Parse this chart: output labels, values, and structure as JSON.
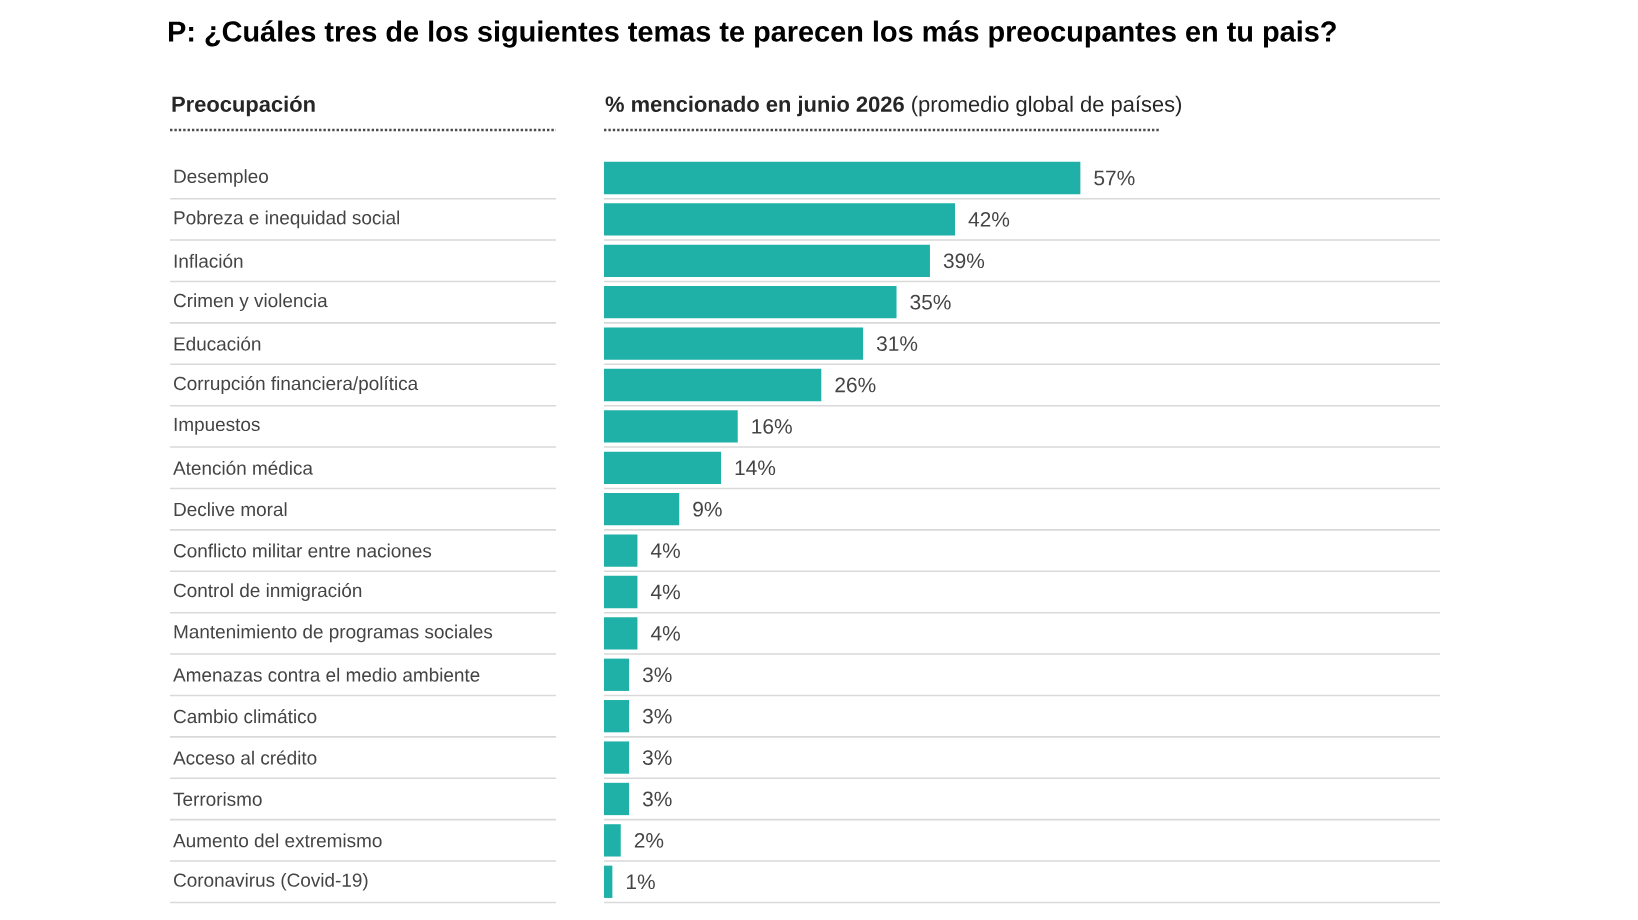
{
  "chart_data": {
    "type": "bar",
    "orientation": "horizontal",
    "title": "P: ¿Cuáles tres de los siguientes temas te parecen los más preocupantes en tu pais?",
    "ylabel": "Preocupación",
    "xlabel": "**% mencionado en junio 2026** (promedio global de países)",
    "categories": [
      "Desempleo",
      "Pobreza e inequidad social",
      "Inflación",
      "Crimen y violencia",
      "Educación",
      "Corrupción financiera/política",
      "Impuestos",
      "Atención médica",
      "Declive moral",
      "Conflicto militar entre naciones",
      "Control de inmigración",
      "Mantenimiento de programas sociales",
      "Amenazas contra el medio ambiente",
      "Cambio climático",
      "Acceso al crédito",
      "Terrorismo",
      "Aumento del extremismo",
      "Coronavirus (Covid-19)"
    ],
    "values": [
      57,
      42,
      39,
      35,
      31,
      26,
      16,
      14,
      9,
      4,
      4,
      4,
      3,
      3,
      3,
      3,
      2,
      1
    ],
    "value_labels": [
      "57%",
      "42%",
      "39%",
      "35%",
      "31%",
      "26%",
      "16%",
      "14%",
      "9%",
      "4%",
      "4%",
      "4%",
      "3%",
      "3%",
      "3%",
      "3%",
      "2%",
      "1%"
    ],
    "color": "#1fb0a8"
  }
}
